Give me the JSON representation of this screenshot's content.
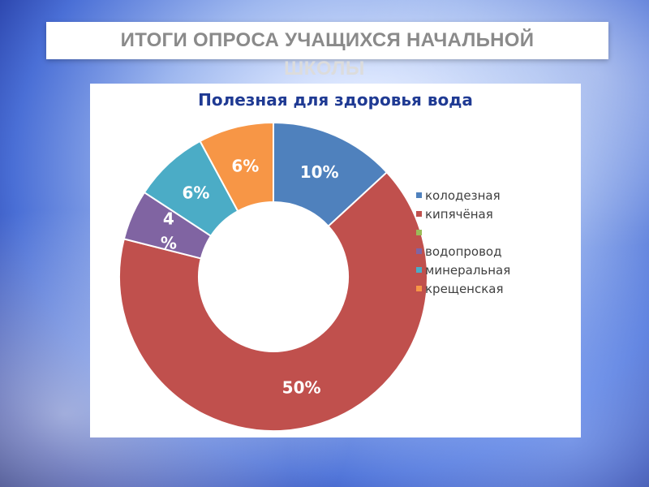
{
  "slide": {
    "title_line1": "ИТОГИ  ОПРОСА УЧАЩИХСЯ НАЧАЛЬНОЙ",
    "title_line2": "ШКОЛЫ"
  },
  "chart_data": {
    "type": "pie",
    "variant": "doughnut",
    "title": "Полезная для здоровья вода",
    "legend_position": "right",
    "series": [
      {
        "name": "колодезная",
        "value": 10,
        "label": "10%",
        "color": "#4f81bd",
        "label_color": "#ffffff"
      },
      {
        "name": "кипячёная",
        "value": 50,
        "label": "50%",
        "color": "#c0504d",
        "label_color": "#ffffff"
      },
      {
        "name": "",
        "value": 0,
        "label": "",
        "color": "#9bbb59",
        "label_color": "#ffffff"
      },
      {
        "name": "водопровод",
        "value": 4,
        "label": "4\n%",
        "color": "#8064a2",
        "label_color": "#ffffff"
      },
      {
        "name": "минеральная",
        "value": 6,
        "label": "6%",
        "color": "#4bacc6",
        "label_color": "#ffffff"
      },
      {
        "name": "крещенская",
        "value": 6,
        "label": "6%",
        "color": "#f79646",
        "label_color": "#ffffff"
      }
    ]
  }
}
